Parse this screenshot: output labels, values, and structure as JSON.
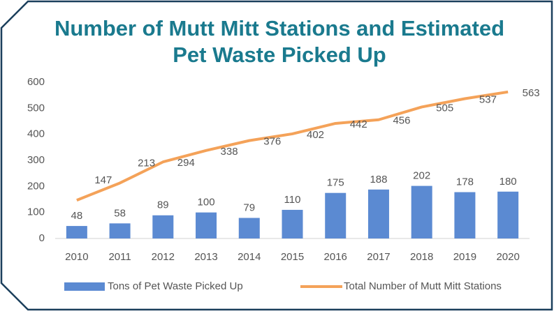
{
  "chart_data": {
    "type": "bar",
    "title": "Number of Mutt Mitt Stations and Estimated Pet Waste Picked Up",
    "categories": [
      "2010",
      "2011",
      "2012",
      "2013",
      "2014",
      "2015",
      "2016",
      "2017",
      "2018",
      "2019",
      "2020"
    ],
    "series": [
      {
        "name": "Tons of Pet Waste Picked Up",
        "type": "bar",
        "color": "#5b8ad2",
        "values": [
          48,
          58,
          89,
          100,
          79,
          110,
          175,
          188,
          202,
          178,
          180
        ]
      },
      {
        "name": "Total Number of Mutt Mitt Stations",
        "type": "line",
        "color": "#f4a259",
        "values": [
          147,
          213,
          294,
          338,
          376,
          402,
          442,
          456,
          505,
          537,
          563
        ]
      }
    ],
    "ylim": [
      0,
      600
    ],
    "yticks": [
      0,
      100,
      200,
      300,
      400,
      500,
      600
    ],
    "legend": "bottom"
  }
}
